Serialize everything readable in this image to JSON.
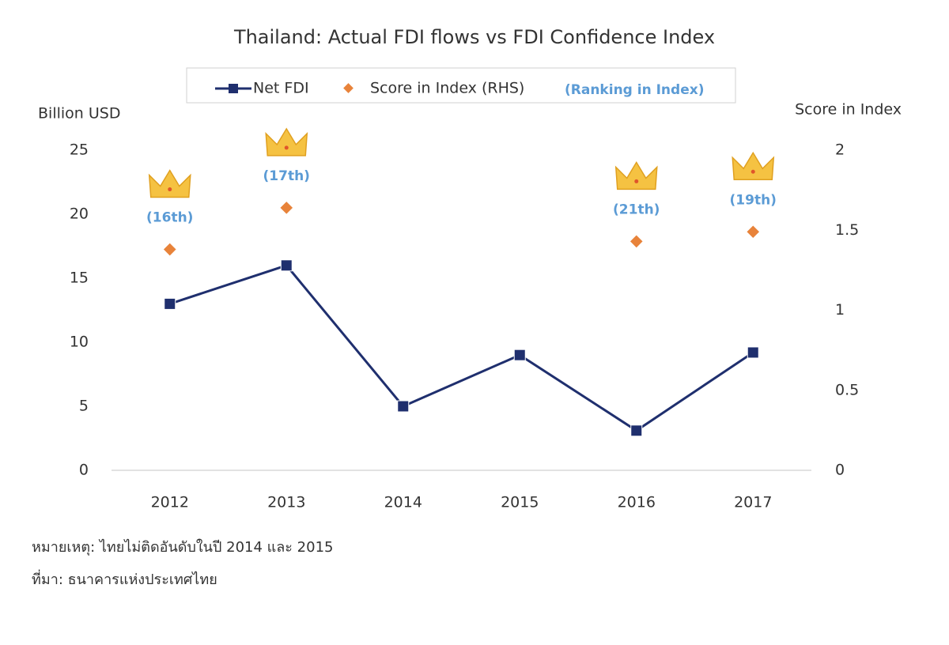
{
  "chart_data": {
    "type": "line",
    "title": "Thailand: Actual FDI flows vs FDI Confidence Index",
    "y_label": "Billion USD",
    "y2_label": "Score in Index",
    "categories": [
      "2012",
      "2013",
      "2014",
      "2015",
      "2016",
      "2017"
    ],
    "series": [
      {
        "name": "Net FDI",
        "color": "#1f2f6e",
        "values": [
          13,
          16,
          5,
          9,
          3.1,
          9.2
        ]
      },
      {
        "name": "Score in Index (RHS)",
        "color": "#e8833a",
        "axis": "y2",
        "marker_only": true,
        "values": [
          1.38,
          1.64,
          null,
          null,
          1.43,
          1.49
        ]
      }
    ],
    "legend_note": "(Ranking in Index)",
    "annotations": [
      "(16th)",
      "(17th)",
      null,
      null,
      "(21th)",
      "(19th)"
    ],
    "annotation_color": "#5b9bd5",
    "ylim": [
      0,
      25
    ],
    "yticks": [
      0,
      5,
      10,
      15,
      20,
      25
    ],
    "y2lim": [
      0,
      2
    ],
    "y2ticks": [
      0,
      0.5,
      1,
      1.5,
      2
    ],
    "grid": false,
    "notes": [
      "หมายเหตุ: ไทยไม่ติดอันดับในปี 2014 และ 2015",
      "ที่มา: ธนาคารแห่งประเทศไทย"
    ]
  }
}
